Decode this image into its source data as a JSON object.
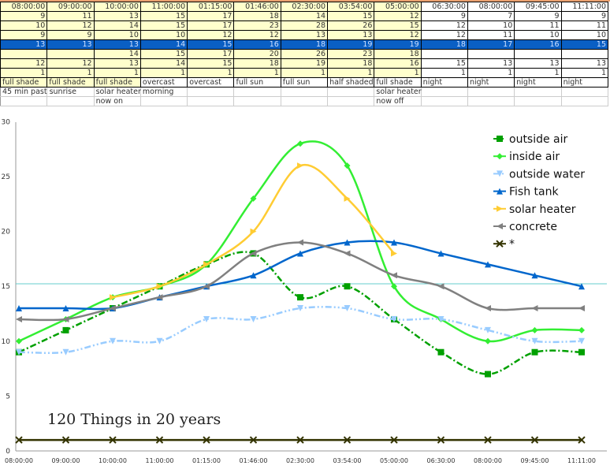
{
  "sheet": {
    "headers": [
      "08:00:00",
      "09:00:00",
      "10:00:00",
      "11:00:00",
      "01:15:00",
      "01:46:00",
      "02:30:00",
      "03:54:00",
      "05:00:00",
      "06:30:00",
      "08:00:00",
      "09:45:00",
      "11:11:00"
    ],
    "rows": [
      [
        "9",
        "11",
        "13",
        "15",
        "17",
        "18",
        "14",
        "15",
        "12",
        "9",
        "7",
        "9",
        "9"
      ],
      [
        "10",
        "12",
        "14",
        "15",
        "17",
        "23",
        "28",
        "26",
        "15",
        "12",
        "10",
        "11",
        "11"
      ],
      [
        "9",
        "9",
        "10",
        "10",
        "12",
        "12",
        "13",
        "13",
        "12",
        "12",
        "11",
        "10",
        "10"
      ],
      [
        "13",
        "13",
        "13",
        "14",
        "15",
        "16",
        "18",
        "19",
        "19",
        "18",
        "17",
        "16",
        "15"
      ],
      [
        "",
        "",
        "14",
        "15",
        "17",
        "20",
        "26",
        "23",
        "18",
        "",
        "",
        "",
        ""
      ],
      [
        "12",
        "12",
        "13",
        "14",
        "15",
        "18",
        "19",
        "18",
        "16",
        "15",
        "13",
        "13",
        "13"
      ],
      [
        "1",
        "1",
        "1",
        "1",
        "1",
        "1",
        "1",
        "1",
        "1",
        "1",
        "1",
        "1",
        "1"
      ]
    ],
    "conditions": [
      "full shade",
      "full shade",
      "full shade",
      "overcast",
      "overcast",
      "full sun",
      "full sun",
      "half shaded",
      "full shade",
      "night",
      "night",
      "night",
      "night"
    ],
    "notes1": [
      "45 min past sunrise",
      "",
      "solar heater",
      "morning",
      "",
      "",
      "",
      "",
      "solar heater",
      "",
      "",
      "",
      ""
    ],
    "notes2": [
      "",
      "",
      "now on",
      "",
      "",
      "",
      "",
      "",
      "now off",
      "",
      "",
      "",
      ""
    ]
  },
  "chart_data": {
    "type": "line",
    "categories": [
      "08:00:00",
      "09:00:00",
      "10:00:00",
      "11:00:00",
      "01:15:00",
      "01:46:00",
      "02:30:00",
      "03:54:00",
      "05:00:00",
      "06:30:00",
      "08:00:00",
      "09:45:00",
      "11:11:00"
    ],
    "ylim": [
      0,
      30
    ],
    "yticks": [
      "0",
      "5",
      "10",
      "15",
      "20",
      "25",
      "30"
    ],
    "grid": false,
    "legend": "top-right",
    "series": [
      {
        "name": "outside air",
        "color": "#00a000",
        "marker": "square",
        "dash": "8,3,2,3",
        "values": [
          9,
          11,
          13,
          15,
          17,
          18,
          14,
          15,
          12,
          9,
          7,
          9,
          9
        ]
      },
      {
        "name": "inside air",
        "color": "#33ee33",
        "marker": "diamond",
        "dash": "",
        "values": [
          10,
          12,
          14,
          15,
          17,
          23,
          28,
          26,
          15,
          12,
          10,
          11,
          11
        ]
      },
      {
        "name": "outside water",
        "color": "#99ccff",
        "marker": "triangle-down",
        "dash": "8,3,2,3,2,3",
        "values": [
          9,
          9,
          10,
          10,
          12,
          12,
          13,
          13,
          12,
          12,
          11,
          10,
          10
        ]
      },
      {
        "name": "Fish tank",
        "color": "#0066cc",
        "marker": "triangle-up",
        "dash": "",
        "values": [
          13,
          13,
          13,
          14,
          15,
          16,
          18,
          19,
          19,
          18,
          17,
          16,
          15
        ]
      },
      {
        "name": "solar heater",
        "color": "#ffcc33",
        "marker": "triangle-right",
        "dash": "",
        "values": [
          null,
          null,
          14,
          15,
          17,
          20,
          26,
          23,
          18,
          null,
          null,
          null,
          null
        ]
      },
      {
        "name": "concrete",
        "color": "#808080",
        "marker": "triangle-left",
        "dash": "",
        "values": [
          12,
          12,
          13,
          14,
          15,
          18,
          19,
          18,
          16,
          15,
          13,
          13,
          13
        ]
      },
      {
        "name": "*",
        "color": "#333300",
        "marker": "x",
        "dash": "",
        "values": [
          1,
          1,
          1,
          1,
          1,
          1,
          1,
          1,
          1,
          1,
          1,
          1,
          1
        ]
      }
    ],
    "annotation": "120 Things in 20 years"
  }
}
